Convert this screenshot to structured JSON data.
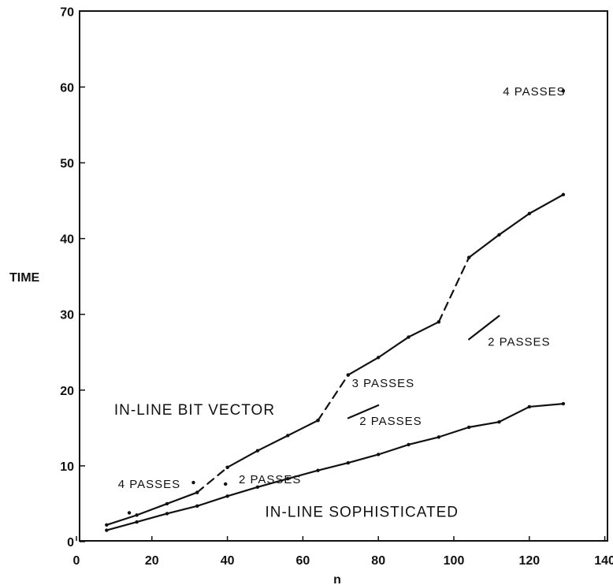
{
  "chart_data": {
    "type": "line",
    "xlabel": "n",
    "ylabel": "TIME",
    "xlim": [
      0,
      140
    ],
    "ylim": [
      0,
      70
    ],
    "x_ticks": [
      0,
      20,
      40,
      60,
      80,
      100,
      120,
      140
    ],
    "y_ticks": [
      0,
      10,
      20,
      30,
      40,
      50,
      60,
      70
    ],
    "grid": false,
    "series": [
      {
        "name": "IN-LINE BIT VECTOR",
        "segments": [
          {
            "style": "solid",
            "points": [
              [
                8,
                2.2
              ],
              [
                16,
                3.5
              ],
              [
                24,
                5.0
              ],
              [
                32,
                6.5
              ]
            ]
          },
          {
            "style": "dashed",
            "points": [
              [
                32,
                6.5
              ],
              [
                40,
                9.8
              ]
            ]
          },
          {
            "style": "solid",
            "points": [
              [
                40,
                9.8
              ],
              [
                48,
                12.0
              ],
              [
                56,
                14.0
              ],
              [
                64,
                16.0
              ]
            ]
          },
          {
            "style": "dashed",
            "points": [
              [
                64,
                16.0
              ],
              [
                72,
                22.0
              ]
            ]
          },
          {
            "style": "solid",
            "points": [
              [
                72,
                22.0
              ],
              [
                80,
                24.3
              ],
              [
                88,
                27.0
              ],
              [
                96,
                29.0
              ]
            ]
          },
          {
            "style": "dashed",
            "points": [
              [
                96,
                29.0
              ],
              [
                104,
                37.5
              ]
            ]
          },
          {
            "style": "solid",
            "points": [
              [
                104,
                37.5
              ],
              [
                112,
                40.5
              ],
              [
                120,
                43.3
              ],
              [
                129,
                45.8
              ]
            ]
          }
        ]
      },
      {
        "name": "IN-LINE SOPHISTICATED",
        "segments": [
          {
            "style": "solid",
            "points": [
              [
                8,
                1.5
              ],
              [
                16,
                2.6
              ],
              [
                24,
                3.7
              ],
              [
                32,
                4.7
              ],
              [
                40,
                6.0
              ],
              [
                48,
                7.2
              ],
              [
                56,
                8.3
              ],
              [
                64,
                9.4
              ],
              [
                72,
                10.4
              ],
              [
                80,
                11.5
              ],
              [
                88,
                12.8
              ],
              [
                96,
                13.8
              ],
              [
                104,
                15.1
              ],
              [
                112,
                15.8
              ],
              [
                120,
                17.8
              ],
              [
                129,
                18.2
              ]
            ]
          }
        ]
      }
    ],
    "extra_segments": [
      {
        "style": "solid",
        "points": [
          [
            72,
            16.3
          ],
          [
            80,
            18.0
          ]
        ]
      },
      {
        "style": "solid",
        "points": [
          [
            104,
            26.7
          ],
          [
            112,
            29.8
          ]
        ]
      }
    ],
    "extra_points": [
      [
        31,
        7.8
      ],
      [
        39.5,
        7.6
      ],
      [
        129,
        59.5
      ],
      [
        14,
        3.8
      ]
    ],
    "annotations": [
      {
        "text": "4 PASSES",
        "x": 113,
        "y": 59.5
      },
      {
        "text": "2 PASSES",
        "x": 109,
        "y": 26.5
      },
      {
        "text": "3 PASSES",
        "x": 73,
        "y": 21.0
      },
      {
        "text": "2 PASSES",
        "x": 75,
        "y": 16.0
      },
      {
        "text": "4 PASSES",
        "x": 11,
        "y": 7.7
      },
      {
        "text": "2 PASSES",
        "x": 43,
        "y": 8.3
      }
    ],
    "series_labels": [
      {
        "text": "IN-LINE BIT VECTOR",
        "x": 10,
        "y": 17.5
      },
      {
        "text": "IN-LINE SOPHISTICATED",
        "x": 50,
        "y": 4.0
      }
    ]
  }
}
